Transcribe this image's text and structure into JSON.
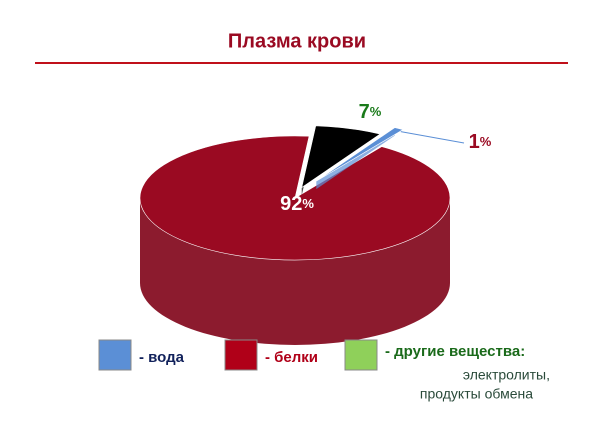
{
  "chart_data": {
    "type": "pie",
    "title": "Плазма крови",
    "values": [
      92,
      7,
      1
    ],
    "value_labels": [
      "92%",
      "7%",
      "1%"
    ],
    "colors": [
      "#9a0a22",
      "#000000",
      "#5b8fd6"
    ],
    "label_colors": [
      "#ffffff",
      "#1a7a1a",
      "#9a0a22"
    ],
    "legend": [
      {
        "label": "- вода",
        "color": "#5b8fd6",
        "text_color": "#10205a"
      },
      {
        "label": "- белки",
        "color": "#b00018",
        "text_color": "#b00018"
      },
      {
        "label": "- другие вещества:",
        "color": "#8fd05a",
        "text_color": "#1a6a1a"
      }
    ],
    "legend_note": [
      "электролиты,",
      "продукты обмена"
    ]
  }
}
